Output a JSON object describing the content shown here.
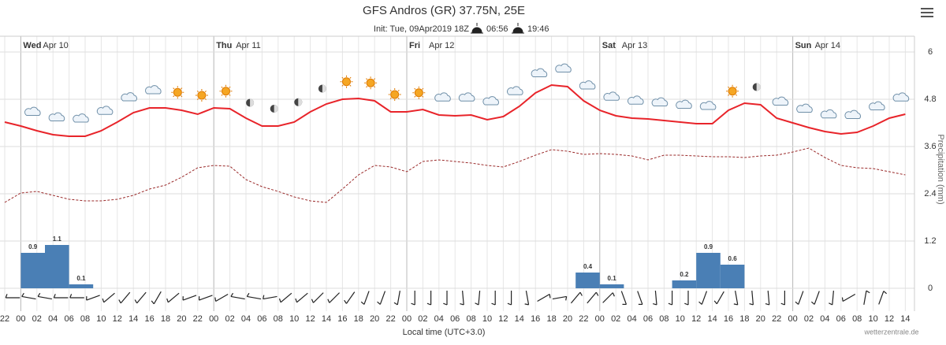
{
  "chart_data": {
    "type": "meteogram",
    "title": "GFS Andros (GR) 37.75N, 25E",
    "subtitle": "Init: Tue, 09Apr2019 18Z",
    "sunrise": "06:56",
    "sunset": "19:46",
    "x_label": "Local time (UTC+3.0)",
    "y_label": "Precipitation (mm)",
    "credit": "wetterzentrale.de",
    "days": [
      {
        "name": "Wed",
        "date": "Apr 10"
      },
      {
        "name": "Thu",
        "date": "Apr 11"
      },
      {
        "name": "Fri",
        "date": "Apr 12"
      },
      {
        "name": "Sat",
        "date": "Apr 13"
      },
      {
        "name": "Sun",
        "date": "Apr 14"
      }
    ],
    "categories": [
      "22",
      "00",
      "02",
      "04",
      "06",
      "08",
      "10",
      "12",
      "14",
      "16",
      "18",
      "20",
      "22",
      "00",
      "02",
      "04",
      "06",
      "08",
      "10",
      "12",
      "14",
      "16",
      "18",
      "20",
      "22",
      "00",
      "02",
      "04",
      "06",
      "08",
      "10",
      "12",
      "14",
      "16",
      "18",
      "20",
      "22",
      "00",
      "02",
      "04",
      "06",
      "08",
      "10",
      "12",
      "14",
      "16",
      "18",
      "20",
      "22",
      "00",
      "02",
      "04",
      "06",
      "08",
      "10",
      "12",
      "14"
    ],
    "ylim": [
      0,
      6
    ],
    "yticks": [
      0,
      1.2,
      2.4,
      3.6,
      4.8,
      6
    ],
    "grid": true,
    "lines": [
      {
        "color": "#e8242a",
        "dash": false,
        "values": [
          4.22,
          4.12,
          4.0,
          3.9,
          3.86,
          3.86,
          4.0,
          4.22,
          4.46,
          4.58,
          4.58,
          4.52,
          4.42,
          4.58,
          4.56,
          4.32,
          4.12,
          4.12,
          4.22,
          4.48,
          4.68,
          4.8,
          4.82,
          4.76,
          4.48,
          4.48,
          4.54,
          4.4,
          4.38,
          4.4,
          4.28,
          4.36,
          4.62,
          4.96,
          5.16,
          5.12,
          4.76,
          4.52,
          4.38,
          4.32,
          4.3,
          4.26,
          4.22,
          4.18,
          4.18,
          4.52,
          4.7,
          4.66,
          4.32,
          4.2,
          4.08,
          3.98,
          3.92,
          3.96,
          4.12,
          4.32,
          4.42
        ]
      },
      {
        "color": "#9a2a2a",
        "dash": true,
        "values": [
          2.18,
          2.42,
          2.46,
          2.36,
          2.26,
          2.22,
          2.22,
          2.26,
          2.36,
          2.52,
          2.62,
          2.82,
          3.06,
          3.12,
          3.1,
          2.76,
          2.58,
          2.46,
          2.32,
          2.22,
          2.18,
          2.52,
          2.88,
          3.12,
          3.08,
          2.96,
          3.22,
          3.26,
          3.22,
          3.18,
          3.12,
          3.08,
          3.22,
          3.38,
          3.52,
          3.48,
          3.4,
          3.42,
          3.4,
          3.36,
          3.26,
          3.38,
          3.38,
          3.36,
          3.34,
          3.34,
          3.32,
          3.36,
          3.38,
          3.46,
          3.56,
          3.32,
          3.12,
          3.06,
          3.04,
          2.96,
          2.88
        ]
      }
    ],
    "precipitation": {
      "color": "#4a7fb5",
      "values": [
        0.9,
        1.1,
        0.1,
        null,
        null,
        null,
        null,
        null,
        null,
        null,
        null,
        null,
        null,
        null,
        null,
        null,
        null,
        null,
        null,
        null,
        null,
        null,
        null,
        0.4,
        0.1,
        null,
        null,
        0.2,
        0.9,
        0.6,
        null,
        null,
        null,
        null,
        null,
        null,
        null
      ]
    }
  }
}
